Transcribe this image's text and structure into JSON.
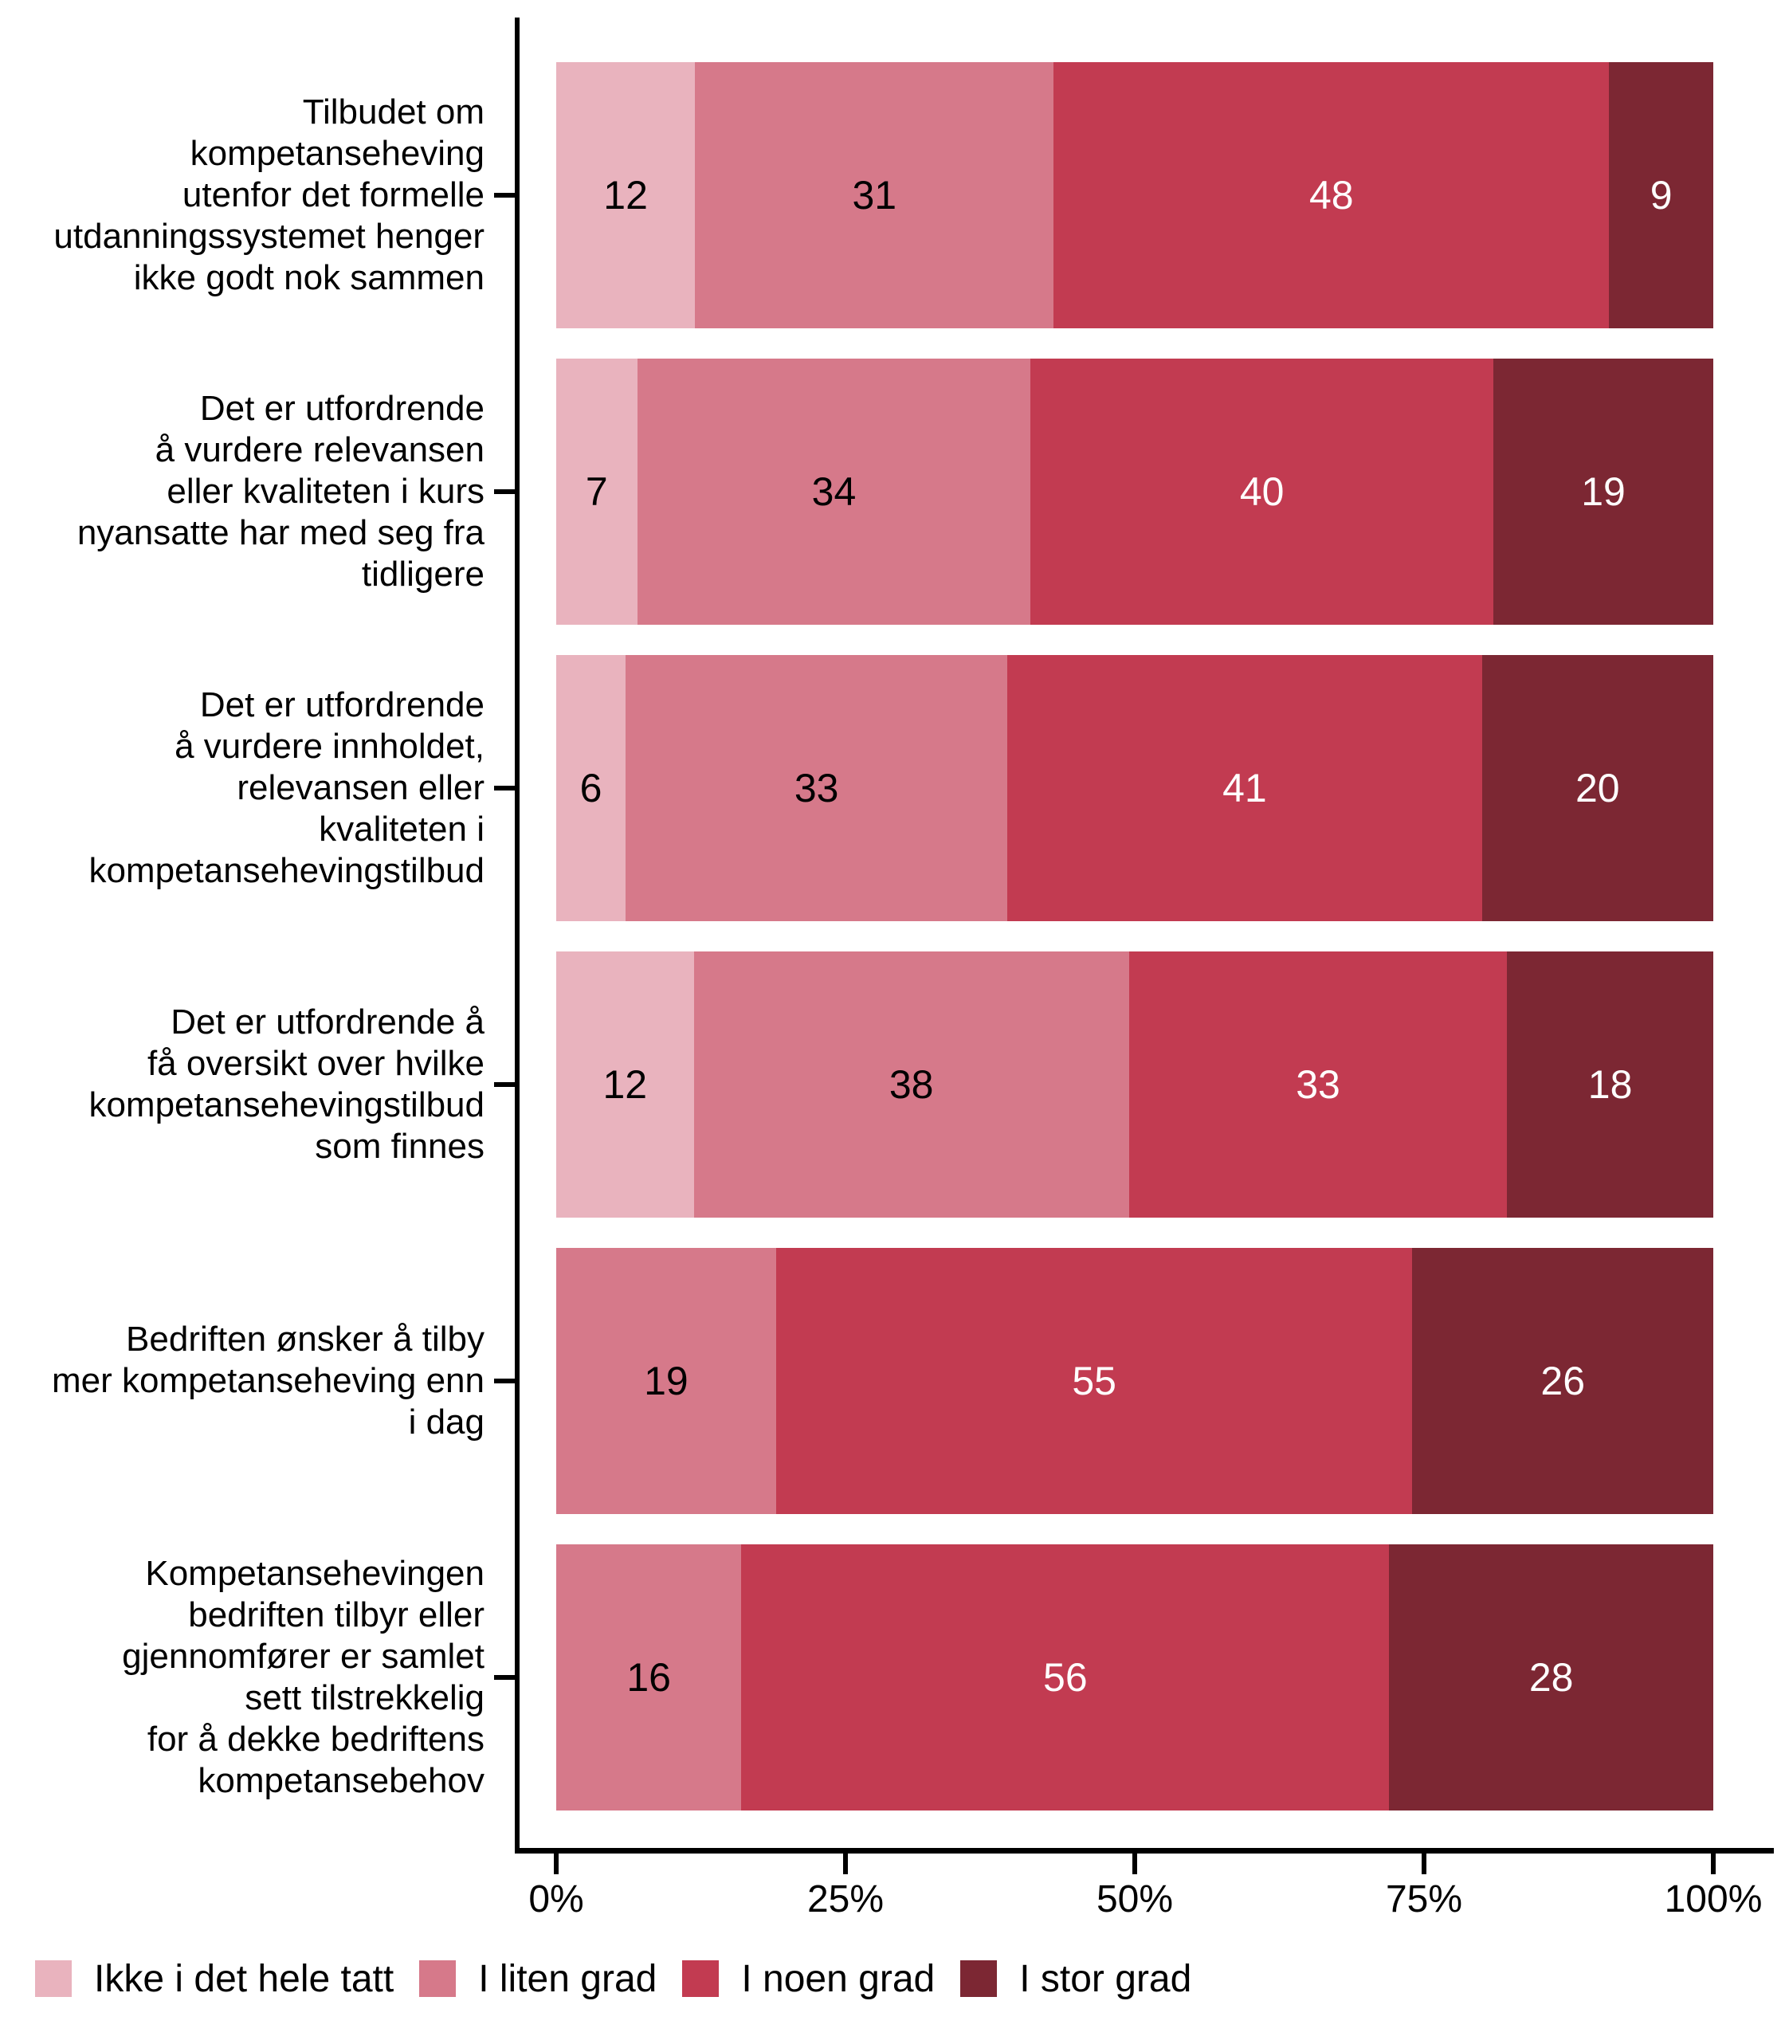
{
  "background": "#FFFFFF",
  "axis_color": "#000000",
  "chart_data": {
    "type": "bar",
    "orientation": "horizontal",
    "stacking": "fill",
    "title": "",
    "xlabel": "",
    "ylabel": "",
    "grid": false,
    "legend_position": "bottom",
    "x_axis": {
      "range_percent": [
        0,
        100
      ],
      "tick_labels": [
        "0%",
        "25%",
        "50%",
        "75%",
        "100%"
      ]
    },
    "categories": [
      {
        "lines": [
          "Tilbudet om",
          "kompetanseheving",
          "utenfor det formelle",
          "utdanningssystemet henger",
          "ikke godt nok sammen"
        ]
      },
      {
        "lines": [
          "Det er utfordrende",
          "å vurdere relevansen",
          "eller kvaliteten i kurs",
          "nyansatte har med seg fra",
          "tidligere"
        ]
      },
      {
        "lines": [
          "Det er utfordrende",
          "å vurdere innholdet,",
          "relevansen eller",
          "kvaliteten i",
          "kompetansehevingstilbud"
        ]
      },
      {
        "lines": [
          "Det er utfordrende å",
          "få oversikt over hvilke",
          "kompetansehevingstilbud",
          "som finnes"
        ]
      },
      {
        "lines": [
          "Bedriften ønsker å tilby",
          "mer kompetanseheving enn",
          "i dag"
        ]
      },
      {
        "lines": [
          "Kompetansehevingen",
          "bedriften tilbyr eller",
          "gjennomfører er samlet",
          "sett tilstrekkelig",
          "for å dekke bedriftens",
          "kompetansebehov"
        ]
      }
    ],
    "series": [
      {
        "name": "Ikke i det hele tatt",
        "color": "#E9B3BE",
        "label_color": "#000000",
        "values": [
          12,
          7,
          6,
          12,
          0,
          0
        ]
      },
      {
        "name": "I liten grad",
        "color": "#D6798A",
        "label_color": "#000000",
        "values": [
          31,
          34,
          33,
          38,
          19,
          16
        ]
      },
      {
        "name": "I noen grad",
        "color": "#C23B51",
        "label_color": "#FFFFFF",
        "values": [
          48,
          40,
          41,
          33,
          55,
          56
        ]
      },
      {
        "name": "I stor grad",
        "color": "#7C2733",
        "label_color": "#FFFFFF",
        "values": [
          9,
          19,
          20,
          18,
          26,
          28
        ]
      }
    ]
  }
}
